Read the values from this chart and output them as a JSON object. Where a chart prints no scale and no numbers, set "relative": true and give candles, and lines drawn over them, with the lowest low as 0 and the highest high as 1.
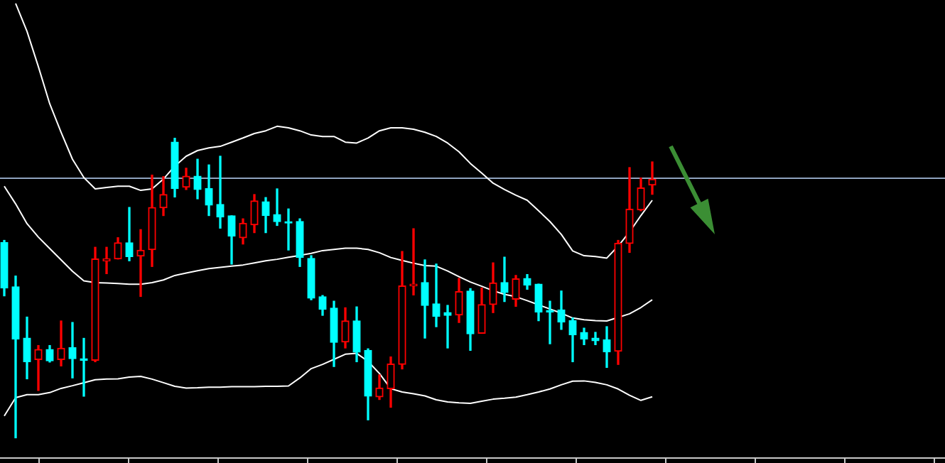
{
  "chart_data": {
    "type": "candlestick",
    "relative": true,
    "categories": [
      null,
      null,
      null,
      null,
      null,
      null,
      null,
      null,
      null,
      null,
      null,
      null,
      null,
      null,
      null,
      null,
      null,
      null,
      null,
      null,
      null,
      null,
      null,
      null,
      null,
      null,
      null,
      null,
      null,
      null,
      null,
      null,
      null,
      null,
      null,
      null,
      null,
      null,
      null,
      null,
      null,
      null,
      null,
      null,
      null,
      null,
      null,
      null,
      null,
      null,
      null,
      null,
      null,
      null,
      null,
      null,
      null,
      null
    ],
    "ohlc": [
      [
        0.652,
        0.659,
        0.474,
        0.5
      ],
      [
        0.504,
        0.54,
        0.0,
        0.33
      ],
      [
        0.333,
        0.403,
        0.197,
        0.254
      ],
      [
        0.261,
        0.308,
        0.158,
        0.295
      ],
      [
        0.295,
        0.308,
        0.253,
        0.257
      ],
      [
        0.261,
        0.39,
        0.24,
        0.299
      ],
      [
        0.301,
        0.385,
        0.2,
        0.264
      ],
      [
        0.264,
        0.332,
        0.139,
        0.259
      ],
      [
        0.259,
        0.636,
        0.254,
        0.597
      ],
      [
        0.591,
        0.636,
        0.548,
        0.597
      ],
      [
        0.597,
        0.668,
        0.597,
        0.651
      ],
      [
        0.651,
        0.769,
        0.591,
        0.605
      ],
      [
        0.607,
        0.695,
        0.472,
        0.626
      ],
      [
        0.628,
        0.877,
        0.572,
        0.769
      ],
      [
        0.768,
        0.872,
        0.742,
        0.812
      ],
      [
        0.987,
        1.0,
        0.804,
        0.832
      ],
      [
        0.837,
        0.9,
        0.829,
        0.873
      ],
      [
        0.873,
        0.93,
        0.798,
        0.829
      ],
      [
        0.832,
        0.911,
        0.742,
        0.777
      ],
      [
        0.779,
        0.94,
        0.7,
        0.737
      ],
      [
        0.741,
        0.741,
        0.58,
        0.674
      ],
      [
        0.668,
        0.731,
        0.647,
        0.716
      ],
      [
        0.711,
        0.812,
        0.685,
        0.791
      ],
      [
        0.788,
        0.802,
        0.685,
        0.742
      ],
      [
        0.745,
        0.831,
        0.709,
        0.722
      ],
      [
        0.72,
        0.764,
        0.627,
        0.717
      ],
      [
        0.722,
        0.731,
        0.572,
        0.602
      ],
      [
        0.599,
        0.608,
        0.461,
        0.466
      ],
      [
        0.471,
        0.475,
        0.409,
        0.429
      ],
      [
        0.433,
        0.456,
        0.238,
        0.319
      ],
      [
        0.32,
        0.434,
        0.3,
        0.39
      ],
      [
        0.39,
        0.437,
        0.254,
        0.286
      ],
      [
        0.292,
        0.297,
        0.06,
        0.139
      ],
      [
        0.137,
        0.21,
        0.128,
        0.166
      ],
      [
        0.164,
        0.27,
        0.102,
        0.246
      ],
      [
        0.245,
        0.622,
        0.23,
        0.507
      ],
      [
        0.507,
        0.698,
        0.477,
        0.513
      ],
      [
        0.518,
        0.594,
        0.333,
        0.442
      ],
      [
        0.447,
        0.58,
        0.371,
        0.406
      ],
      [
        0.418,
        0.442,
        0.3,
        0.409
      ],
      [
        0.41,
        0.532,
        0.385,
        0.488
      ],
      [
        0.49,
        0.498,
        0.292,
        0.347
      ],
      [
        0.349,
        0.5,
        0.349,
        0.445
      ],
      [
        0.445,
        0.584,
        0.418,
        0.517
      ],
      [
        0.518,
        0.603,
        0.455,
        0.485
      ],
      [
        0.463,
        0.542,
        0.439,
        0.531
      ],
      [
        0.532,
        0.545,
        0.496,
        0.51
      ],
      [
        0.513,
        0.513,
        0.391,
        0.42
      ],
      [
        0.425,
        0.456,
        0.314,
        0.42
      ],
      [
        0.427,
        0.49,
        0.362,
        0.387
      ],
      [
        0.391,
        0.4,
        0.254,
        0.344
      ],
      [
        0.352,
        0.366,
        0.311,
        0.33
      ],
      [
        0.333,
        0.352,
        0.311,
        0.324
      ],
      [
        0.327,
        0.371,
        0.235,
        0.287
      ],
      [
        0.289,
        0.659,
        0.245,
        0.649
      ],
      [
        0.649,
        0.902,
        0.619,
        0.763
      ],
      [
        0.761,
        0.867,
        0.758,
        0.834
      ],
      [
        0.844,
        0.921,
        0.813,
        0.863
      ]
    ],
    "colors": [
      "#00ffff",
      "#00ffff",
      "#00ffff",
      "#ff0000",
      "#00ffff",
      "#ff0000",
      "#00ffff",
      "#00ffff",
      "#ff0000",
      "#ff0000",
      "#ff0000",
      "#00ffff",
      "#ff0000",
      "#ff0000",
      "#ff0000",
      "#00ffff",
      "#ff0000",
      "#00ffff",
      "#00ffff",
      "#00ffff",
      "#00ffff",
      "#ff0000",
      "#ff0000",
      "#00ffff",
      "#00ffff",
      "#00ffff",
      "#00ffff",
      "#00ffff",
      "#00ffff",
      "#00ffff",
      "#ff0000",
      "#00ffff",
      "#00ffff",
      "#ff0000",
      "#ff0000",
      "#ff0000",
      "#ff0000",
      "#00ffff",
      "#00ffff",
      "#00ffff",
      "#ff0000",
      "#00ffff",
      "#ff0000",
      "#ff0000",
      "#00ffff",
      "#ff0000",
      "#00ffff",
      "#00ffff",
      "#00ffff",
      "#00ffff",
      "#00ffff",
      "#00ffff",
      "#00ffff",
      "#00ffff",
      "#ff0000",
      "#ff0000",
      "#ff0000",
      "#ff0000"
    ],
    "series": [
      {
        "type": "line",
        "color": "#ffffff",
        "values": [
          null,
          1.45,
          1.357,
          1.239,
          1.115,
          1.02,
          0.93,
          0.869,
          0.831,
          0.836,
          0.84,
          0.84,
          0.826,
          0.831,
          0.864,
          0.907,
          0.94,
          0.959,
          0.968,
          0.973,
          0.987,
          1.001,
          1.016,
          1.025,
          1.04,
          1.035,
          1.025,
          1.011,
          1.006,
          1.006,
          0.987,
          0.984,
          1.001,
          1.025,
          1.035,
          1.035,
          1.03,
          1.02,
          1.006,
          0.984,
          0.955,
          0.916,
          0.884,
          0.85,
          0.829,
          0.81,
          0.793,
          0.758,
          0.722,
          0.679,
          0.624,
          0.608,
          0.605,
          0.6,
          0.64,
          0.687,
          0.742,
          0.793
        ]
      },
      {
        "type": "line",
        "color": "#ffffff",
        "values": [
          0.84,
          0.781,
          0.715,
          0.67,
          0.632,
          0.594,
          0.556,
          0.524,
          0.518,
          0.517,
          0.515,
          0.513,
          0.513,
          0.518,
          0.527,
          0.542,
          0.55,
          0.558,
          0.565,
          0.569,
          0.573,
          0.577,
          0.584,
          0.591,
          0.596,
          0.603,
          0.609,
          0.616,
          0.625,
          0.629,
          0.633,
          0.633,
          0.629,
          0.618,
          0.602,
          0.592,
          0.583,
          0.575,
          0.573,
          0.557,
          0.538,
          0.52,
          0.506,
          0.491,
          0.479,
          0.471,
          0.458,
          0.444,
          0.43,
          0.416,
          0.4,
          0.394,
          0.391,
          0.39,
          0.402,
          0.414,
          0.435,
          0.461
        ]
      },
      {
        "type": "line",
        "color": "#ffffff",
        "values": [
          0.073,
          0.134,
          0.144,
          0.144,
          0.151,
          0.165,
          0.174,
          0.184,
          0.194,
          0.196,
          0.197,
          0.203,
          0.205,
          0.196,
          0.184,
          0.172,
          0.166,
          0.167,
          0.169,
          0.169,
          0.171,
          0.171,
          0.171,
          0.172,
          0.172,
          0.173,
          0.2,
          0.231,
          0.245,
          0.262,
          0.279,
          0.282,
          0.255,
          0.215,
          0.164,
          0.153,
          0.147,
          0.14,
          0.127,
          0.12,
          0.117,
          0.115,
          0.122,
          0.129,
          0.132,
          0.136,
          0.144,
          0.153,
          0.163,
          0.177,
          0.189,
          0.19,
          0.185,
          0.177,
          0.163,
          0.142,
          0.125,
          0.137
        ]
      }
    ],
    "ref_lines": [
      {
        "axis": "y",
        "value": 0.869,
        "color": "#8fa3bf"
      }
    ]
  }
}
